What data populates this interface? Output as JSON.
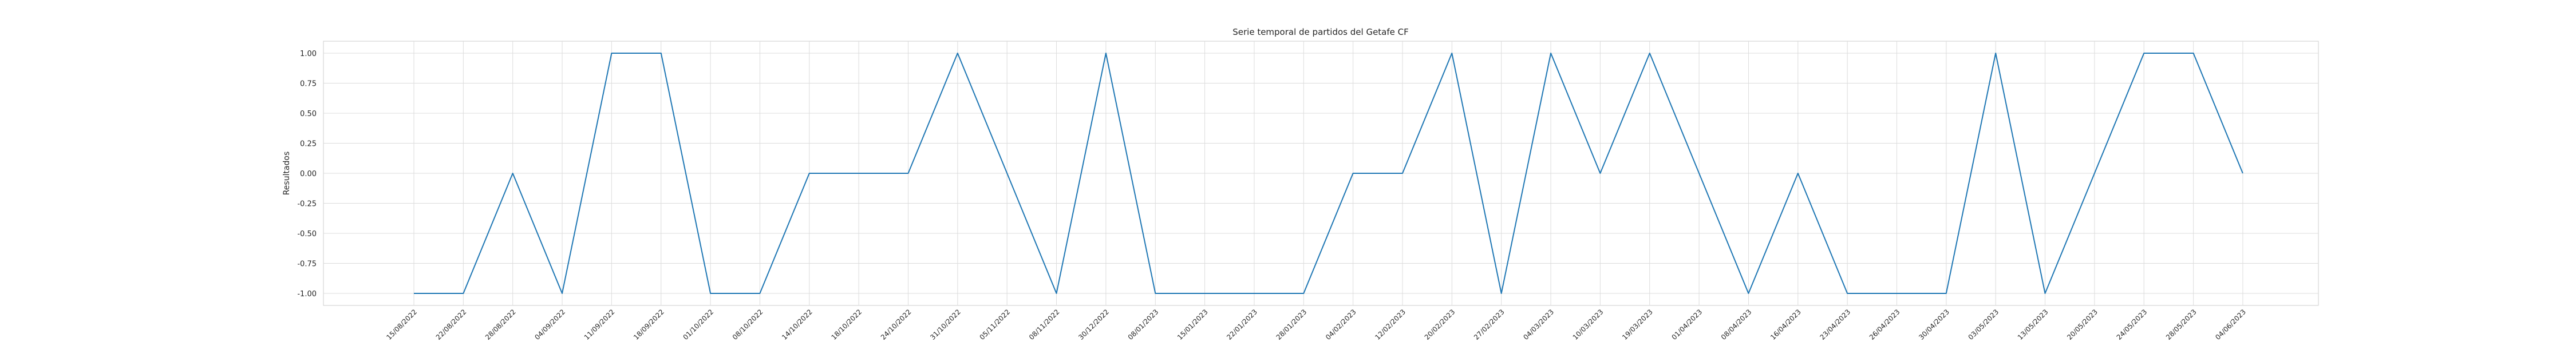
{
  "chart_data": {
    "type": "line",
    "title": "Serie temporal de partidos del Getafe CF",
    "xlabel": "",
    "ylabel": "Resultados",
    "ylim": [
      -1.08,
      1.08
    ],
    "yticks": [
      "1.00",
      "0.75",
      "0.50",
      "0.25",
      "0.00",
      "-0.25",
      "-0.50",
      "-0.75",
      "-1.00"
    ],
    "ytick_values": [
      1.0,
      0.75,
      0.5,
      0.25,
      0.0,
      -0.25,
      -0.5,
      -0.75,
      -1.0
    ],
    "grid": true,
    "series_color": "#1f77b4",
    "x": [
      "15/08/2022",
      "22/08/2022",
      "28/08/2022",
      "04/09/2022",
      "11/09/2022",
      "18/09/2022",
      "01/10/2022",
      "08/10/2022",
      "14/10/2022",
      "18/10/2022",
      "24/10/2022",
      "31/10/2022",
      "05/11/2022",
      "08/11/2022",
      "30/12/2022",
      "08/01/2023",
      "15/01/2023",
      "22/01/2023",
      "28/01/2023",
      "04/02/2023",
      "12/02/2023",
      "20/02/2023",
      "27/02/2023",
      "04/03/2023",
      "10/03/2023",
      "19/03/2023",
      "01/04/2023",
      "08/04/2023",
      "16/04/2023",
      "23/04/2023",
      "26/04/2023",
      "30/04/2023",
      "03/05/2023",
      "13/05/2023",
      "20/05/2023",
      "24/05/2023",
      "28/05/2023",
      "04/06/2023"
    ],
    "values": [
      -1,
      -1,
      0,
      -1,
      1,
      1,
      -1,
      -1,
      0,
      0,
      0,
      1,
      0,
      -1,
      1,
      -1,
      -1,
      -1,
      -1,
      0,
      0,
      1,
      -1,
      1,
      0,
      1,
      0,
      -1,
      0,
      -1,
      -1,
      -1,
      1,
      -1,
      0,
      1,
      1,
      0
    ]
  }
}
